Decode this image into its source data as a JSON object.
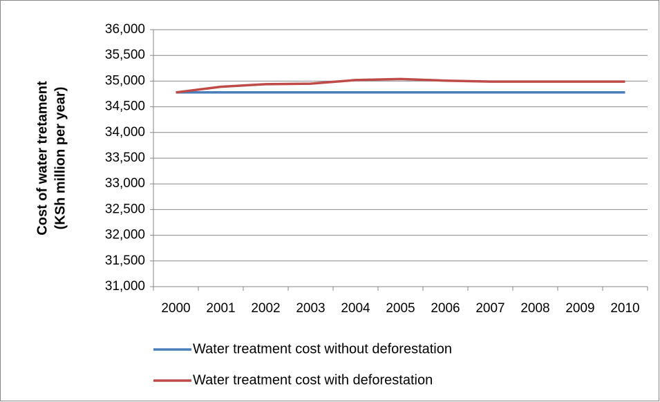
{
  "chart_data": {
    "type": "line",
    "y_label": [
      "Cost of water tretament",
      "(KSh million per year)"
    ],
    "categories": [
      "2000",
      "2001",
      "2002",
      "2003",
      "2004",
      "2005",
      "2006",
      "2007",
      "2008",
      "2009",
      "2010"
    ],
    "series": [
      {
        "name": "Water treatment cost without deforestation",
        "color": "#4a7ebb",
        "values": [
          34780,
          34780,
          34780,
          34780,
          34780,
          34780,
          34780,
          34780,
          34780,
          34780,
          34780
        ]
      },
      {
        "name": "Water treatment cost with deforestation",
        "color": "#be4b48",
        "values": [
          34780,
          34890,
          34940,
          34950,
          35020,
          35040,
          35010,
          34990,
          34990,
          34990,
          34990
        ]
      }
    ],
    "ylim": [
      31000,
      36000
    ],
    "yticks": [
      {
        "value": 31000,
        "label": "31,000"
      },
      {
        "value": 31500,
        "label": "31,500"
      },
      {
        "value": 32000,
        "label": "32,000"
      },
      {
        "value": 32500,
        "label": "32,500"
      },
      {
        "value": 33000,
        "label": "33,000"
      },
      {
        "value": 33500,
        "label": "33,500"
      },
      {
        "value": 34000,
        "label": "34,000"
      },
      {
        "value": 34500,
        "label": "34,500"
      },
      {
        "value": 35000,
        "label": "35,000"
      },
      {
        "value": 35500,
        "label": "35,500"
      },
      {
        "value": 36000,
        "label": "36,000"
      }
    ],
    "grid": true
  }
}
